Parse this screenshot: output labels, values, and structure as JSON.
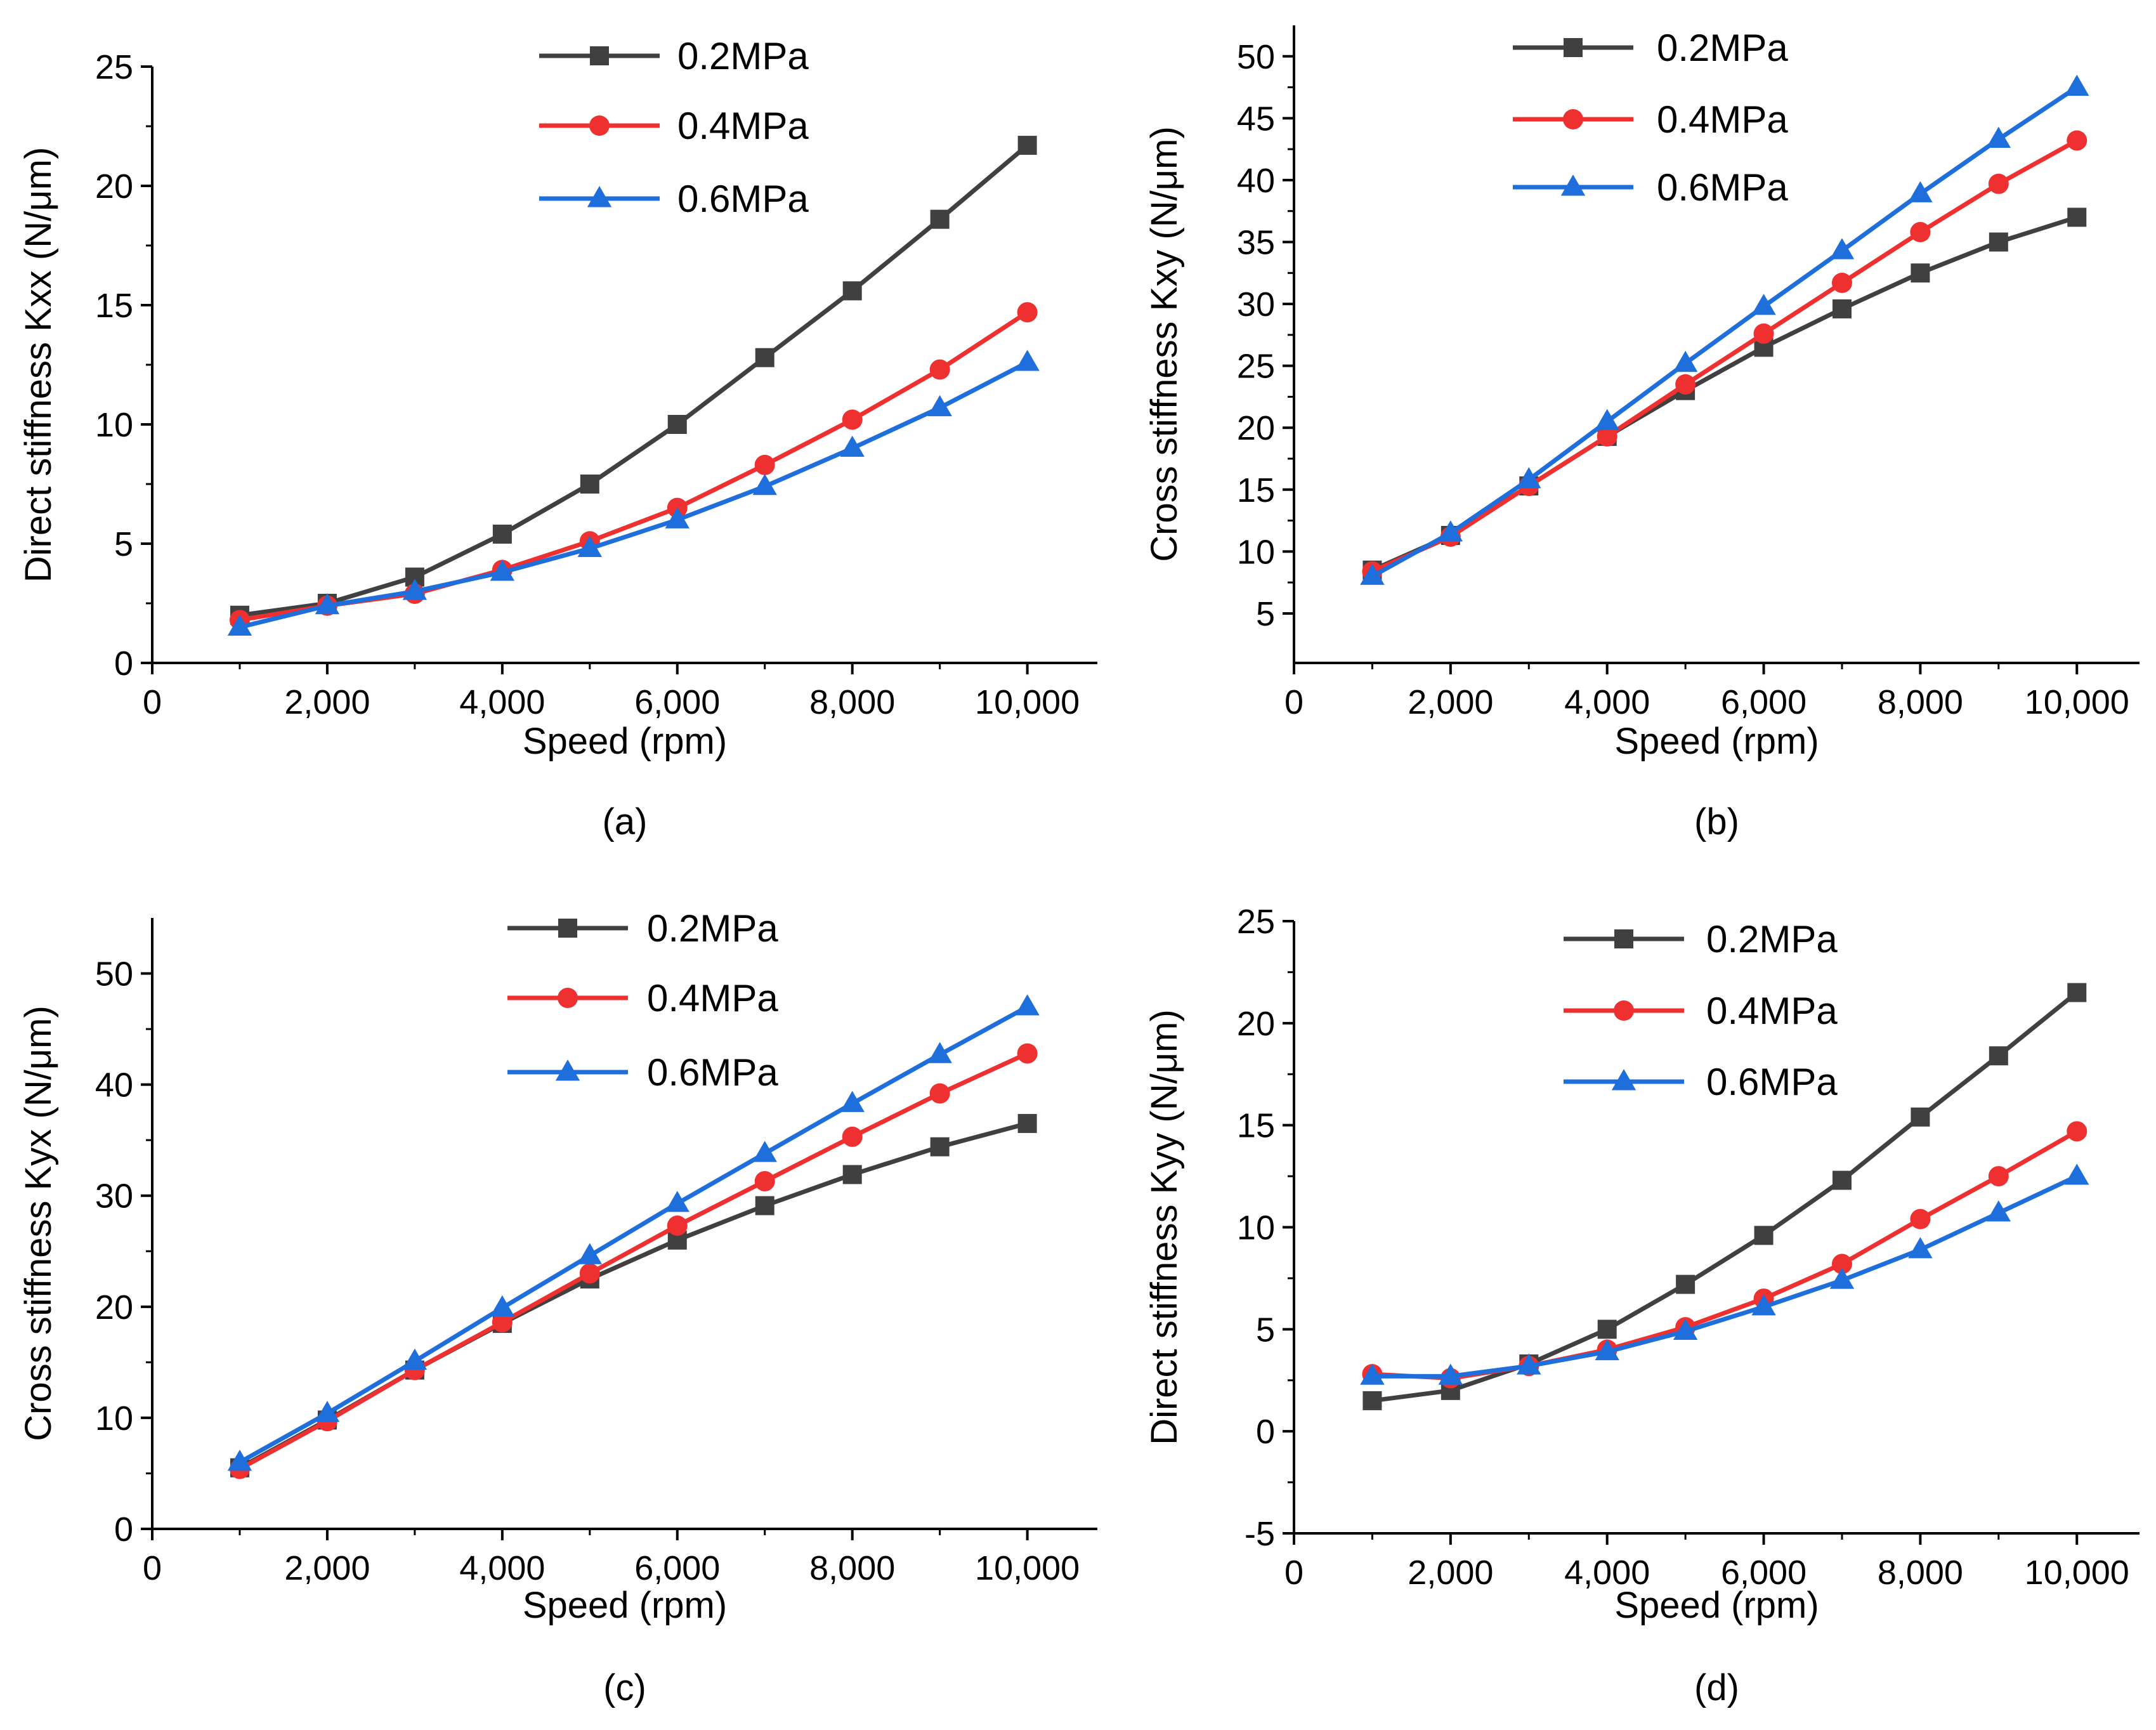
{
  "colors": {
    "p02": "#404040",
    "p04": "#ee3030",
    "p06": "#1e6fdc"
  },
  "chart_data": [
    {
      "type": "line",
      "panel_label": "(a)",
      "xlabel": "Speed (rpm)",
      "ylabel": "Direct stiffness Kxx  (N/μm)",
      "xlim": [
        0,
        10800
      ],
      "ylim": [
        0,
        25
      ],
      "xticks": [
        0,
        2000,
        4000,
        6000,
        8000,
        10000
      ],
      "xtick_labels": [
        "0",
        "2,000",
        "4,000",
        "6,000",
        "8,000",
        "10,000"
      ],
      "yticks": [
        0,
        5,
        10,
        15,
        20,
        25
      ],
      "ytick_labels": [
        "0",
        "5",
        "10",
        "15",
        "20",
        "25"
      ],
      "legend_position": "top-center",
      "x": [
        1000,
        2000,
        3000,
        4000,
        5000,
        6000,
        7000,
        8000,
        9000,
        10000
      ],
      "series": [
        {
          "name": "0.2MPa",
          "marker": "square",
          "values": [
            2.0,
            2.5,
            3.6,
            5.4,
            7.5,
            10.0,
            12.8,
            15.6,
            18.6,
            21.7
          ]
        },
        {
          "name": "0.4MPa",
          "marker": "circle",
          "values": [
            1.8,
            2.4,
            2.9,
            3.9,
            5.1,
            6.5,
            8.3,
            10.2,
            12.3,
            14.7
          ]
        },
        {
          "name": "0.6MPa",
          "marker": "triangle",
          "values": [
            1.5,
            2.4,
            3.0,
            3.8,
            4.8,
            6.0,
            7.4,
            9.0,
            10.7,
            12.6
          ]
        }
      ]
    },
    {
      "type": "line",
      "panel_label": "(b)",
      "xlabel": "Speed (rpm)",
      "ylabel": "Cross stiffness Kxy  (N/μm)",
      "xlim": [
        0,
        10800
      ],
      "ylim": [
        1,
        52.5
      ],
      "xticks": [
        0,
        2000,
        4000,
        6000,
        8000,
        10000
      ],
      "xtick_labels": [
        "0",
        "2,000",
        "4,000",
        "6,000",
        "8,000",
        "10,000"
      ],
      "yticks": [
        5,
        10,
        15,
        20,
        25,
        30,
        35,
        40,
        45,
        50
      ],
      "ytick_labels": [
        "5",
        "10",
        "15",
        "20",
        "25",
        "30",
        "35",
        "40",
        "45",
        "50"
      ],
      "legend_position": "top-left",
      "x": [
        1000,
        2000,
        3000,
        4000,
        5000,
        6000,
        7000,
        8000,
        9000,
        10000
      ],
      "series": [
        {
          "name": "0.2MPa",
          "marker": "square",
          "values": [
            8.5,
            11.3,
            15.3,
            19.3,
            23.0,
            26.5,
            29.6,
            32.5,
            35.0,
            37.0
          ]
        },
        {
          "name": "0.4MPa",
          "marker": "circle",
          "values": [
            8.4,
            11.2,
            15.3,
            19.3,
            23.5,
            27.6,
            31.7,
            35.8,
            39.7,
            43.2
          ]
        },
        {
          "name": "0.6MPa",
          "marker": "triangle",
          "values": [
            8.0,
            11.5,
            15.8,
            20.5,
            25.2,
            29.8,
            34.3,
            38.9,
            43.3,
            47.5
          ]
        }
      ]
    },
    {
      "type": "line",
      "panel_label": "(c)",
      "xlabel": "Speed (rpm)",
      "ylabel": "Cross stiffness Kyx (N/μm)",
      "xlim": [
        0,
        10800
      ],
      "ylim": [
        0,
        55
      ],
      "xticks": [
        0,
        2000,
        4000,
        6000,
        8000,
        10000
      ],
      "xtick_labels": [
        "0",
        "2,000",
        "4,000",
        "6,000",
        "8,000",
        "10,000"
      ],
      "yticks": [
        0,
        10,
        20,
        30,
        40,
        50
      ],
      "ytick_labels": [
        "0",
        "10",
        "20",
        "30",
        "40",
        "50"
      ],
      "legend_position": "top-center",
      "x": [
        1000,
        2000,
        3000,
        4000,
        5000,
        6000,
        7000,
        8000,
        9000,
        10000
      ],
      "series": [
        {
          "name": "0.2MPa",
          "marker": "square",
          "values": [
            5.5,
            9.8,
            14.3,
            18.5,
            22.5,
            26.0,
            29.1,
            31.9,
            34.4,
            36.5
          ]
        },
        {
          "name": "0.4MPa",
          "marker": "circle",
          "values": [
            5.4,
            9.7,
            14.3,
            18.6,
            23.0,
            27.3,
            31.3,
            35.3,
            39.2,
            42.8
          ]
        },
        {
          "name": "0.6MPa",
          "marker": "triangle",
          "values": [
            6.0,
            10.4,
            15.1,
            19.9,
            24.6,
            29.3,
            33.8,
            38.3,
            42.7,
            47.0
          ]
        }
      ]
    },
    {
      "type": "line",
      "panel_label": "(d)",
      "xlabel": "Speed (rpm)",
      "ylabel": "Direct stiffness Kyy (N/μm)",
      "xlim": [
        0,
        10800
      ],
      "ylim": [
        -5,
        25
      ],
      "xticks": [
        0,
        2000,
        4000,
        6000,
        8000,
        10000
      ],
      "xtick_labels": [
        "0",
        "2,000",
        "4,000",
        "6,000",
        "8,000",
        "10,000"
      ],
      "yticks": [
        -5,
        0,
        5,
        10,
        15,
        20,
        25
      ],
      "ytick_labels": [
        "-5",
        "0",
        "5",
        "10",
        "15",
        "20",
        "25"
      ],
      "legend_position": "top-center",
      "x": [
        1000,
        2000,
        3000,
        4000,
        5000,
        6000,
        7000,
        8000,
        9000,
        10000
      ],
      "series": [
        {
          "name": "0.2MPa",
          "marker": "square",
          "values": [
            1.5,
            2.0,
            3.3,
            5.0,
            7.2,
            9.6,
            12.3,
            15.4,
            18.4,
            21.5
          ]
        },
        {
          "name": "0.4MPa",
          "marker": "circle",
          "values": [
            2.8,
            2.6,
            3.2,
            4.0,
            5.1,
            6.5,
            8.2,
            10.4,
            12.5,
            14.7
          ]
        },
        {
          "name": "0.6MPa",
          "marker": "triangle",
          "values": [
            2.7,
            2.7,
            3.2,
            3.9,
            4.9,
            6.1,
            7.4,
            8.9,
            10.7,
            12.5
          ]
        }
      ]
    }
  ]
}
